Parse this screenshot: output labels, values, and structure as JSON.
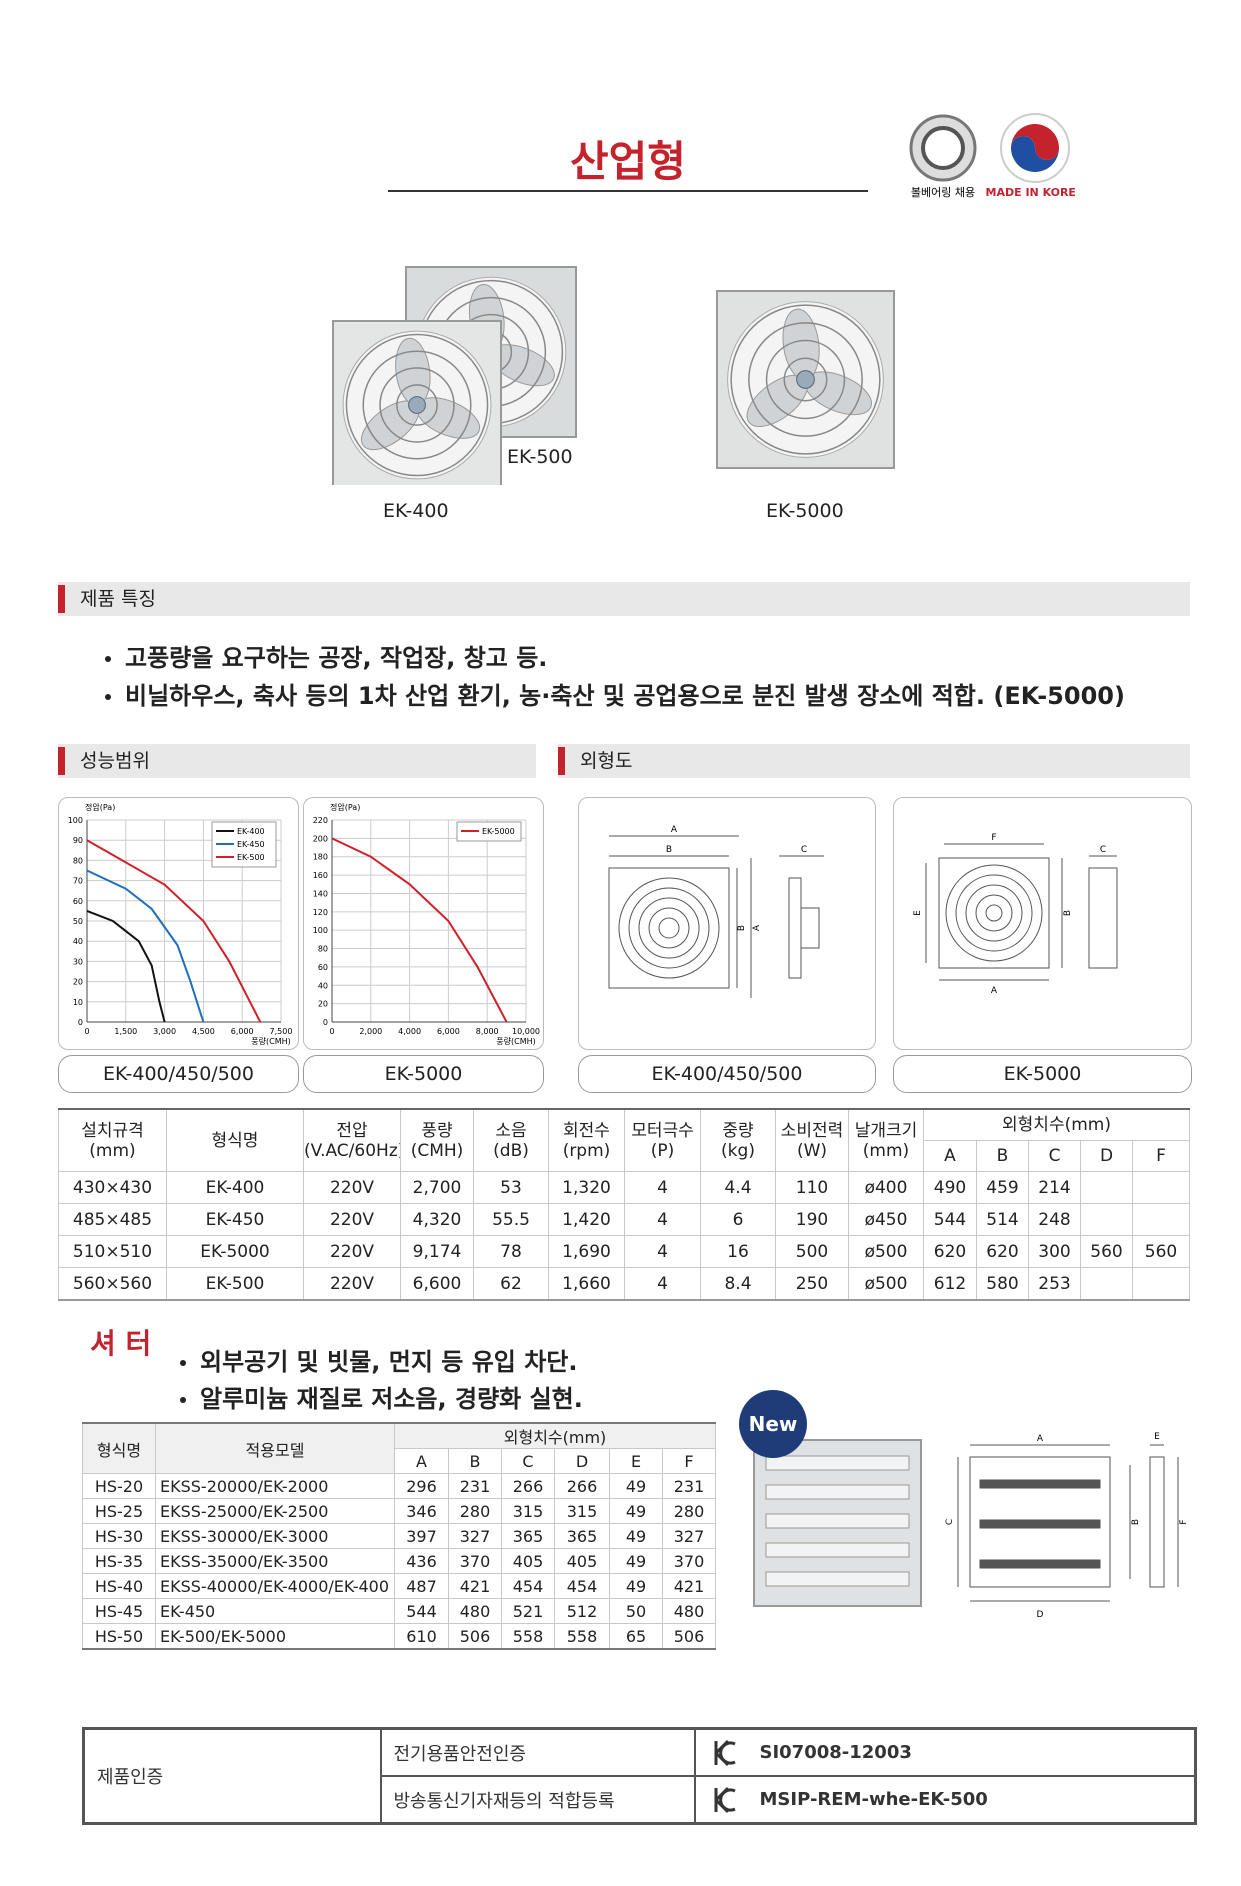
{
  "header": {
    "title": "산업형",
    "badges": [
      "볼베어링 채용",
      "MADE IN KOREA"
    ]
  },
  "products": [
    "EK-500",
    "EK-400",
    "EK-5000"
  ],
  "features": {
    "title": "제품 특징",
    "items": [
      "고풍량을 요구하는 공장, 작업장, 창고 등.",
      "비닐하우스, 축사 등의 1차 산업 환기, 농·축산 및 공업용으로 분진 발생 장소에 적합. (EK-5000)"
    ]
  },
  "performance": {
    "title": "성능범위",
    "charts": [
      {
        "type": "line",
        "y_label": "정압(Pa)",
        "x_label": "풍량(CMH)",
        "xlim": [
          0,
          7500
        ],
        "xticks": [
          0,
          {
            "value": 1500,
            "label": "1,500"
          },
          {
            "value": 3000,
            "label": "3,000"
          },
          {
            "value": 4500,
            "label": "4,500"
          },
          {
            "value": 6000,
            "label": "6,000"
          },
          {
            "value": 7500,
            "label": "7,500"
          }
        ],
        "ylim": [
          0,
          100
        ],
        "yticks": [
          0,
          10,
          20,
          30,
          40,
          50,
          60,
          70,
          80,
          90,
          100
        ],
        "grid": true,
        "legend": "upper right",
        "series": [
          {
            "name": "EK-400",
            "color": "#111111",
            "x": [
              0,
              1000,
              2000,
              2500,
              2800,
              3000
            ],
            "values": [
              55,
              50,
              40,
              28,
              10,
              0
            ]
          },
          {
            "name": "EK-450",
            "color": "#1f6fb8",
            "x": [
              0,
              1500,
              2500,
              3500,
              4000,
              4500
            ],
            "values": [
              75,
              66,
              56,
              38,
              20,
              0
            ]
          },
          {
            "name": "EK-500",
            "color": "#d0202a",
            "x": [
              0,
              1500,
              3000,
              4500,
              5500,
              6300,
              6700
            ],
            "values": [
              90,
              79,
              68,
              50,
              30,
              10,
              0
            ]
          }
        ]
      },
      {
        "type": "line",
        "y_label": "정압(Pa)",
        "x_label": "풍량(CMH)",
        "xlim": [
          0,
          10000
        ],
        "xticks": [
          0,
          {
            "value": 2000,
            "label": "2,000"
          },
          {
            "value": 4000,
            "label": "4,000"
          },
          {
            "value": 6000,
            "label": "6,000"
          },
          {
            "value": 8000,
            "label": "8,000"
          },
          {
            "value": 10000,
            "label": "10,000"
          }
        ],
        "ylim": [
          0,
          220
        ],
        "yticks": [
          0,
          20,
          40,
          60,
          80,
          100,
          120,
          140,
          160,
          180,
          200,
          220
        ],
        "grid": true,
        "legend": "upper right",
        "series": [
          {
            "name": "EK-5000",
            "color": "#d0202a",
            "x": [
              0,
              2000,
              4000,
              6000,
              7500,
              8500,
              9000
            ],
            "values": [
              200,
              180,
              150,
              110,
              60,
              20,
              0
            ]
          }
        ]
      }
    ],
    "captions": [
      "EK-400/450/500",
      "EK-5000"
    ]
  },
  "outline": {
    "title": "외형도",
    "drawings": [
      {
        "labels": [
          "A",
          "B",
          "B",
          "A",
          "C"
        ]
      },
      {
        "labels": [
          "F",
          "E",
          "B",
          "C",
          "A"
        ]
      }
    ],
    "captions": [
      "EK-400/450/500",
      "EK-5000"
    ]
  },
  "spec_table": {
    "headers": [
      [
        "설치규격",
        "(mm)"
      ],
      [
        "형식명"
      ],
      [
        "전압",
        "(V.AC/60Hz)"
      ],
      [
        "풍량",
        "(CMH)"
      ],
      [
        "소음",
        "(dB)"
      ],
      [
        "회전수",
        "(rpm)"
      ],
      [
        "모터극수",
        "(P)"
      ],
      [
        "중량",
        "(kg)"
      ],
      [
        "소비전력",
        "(W)"
      ],
      [
        "날개크기",
        "(mm)"
      ]
    ],
    "dims_header": "외형치수(mm)",
    "dims_cols": [
      "A",
      "B",
      "C",
      "D",
      "F"
    ],
    "rows": [
      [
        "430×430",
        "EK-400",
        "220V",
        "2,700",
        "53",
        "1,320",
        "4",
        "4.4",
        "110",
        "ø400",
        "490",
        "459",
        "214",
        null,
        null
      ],
      [
        "485×485",
        "EK-450",
        "220V",
        "4,320",
        "55.5",
        "1,420",
        "4",
        "6",
        "190",
        "ø450",
        "544",
        "514",
        "248",
        null,
        null
      ],
      [
        "510×510",
        "EK-5000",
        "220V",
        "9,174",
        "78",
        "1,690",
        "4",
        "16",
        "500",
        "ø500",
        "620",
        "620",
        "300",
        "560",
        "560"
      ],
      [
        "560×560",
        "EK-500",
        "220V",
        "6,600",
        "62",
        "1,660",
        "4",
        "8.4",
        "250",
        "ø500",
        "612",
        "580",
        "253",
        null,
        null
      ]
    ]
  },
  "shutter": {
    "title": "셔 터",
    "items": [
      "외부공기 및 빗물, 먼지 등 유입 차단.",
      "알루미늄 재질로 저소음, 경량화 실현."
    ],
    "badge": "New",
    "table": {
      "headers": [
        "형식명",
        "적용모델"
      ],
      "dims_header": "외형치수(mm)",
      "dims_cols": [
        "A",
        "B",
        "C",
        "D",
        "E",
        "F"
      ],
      "rows": [
        [
          "HS-20",
          "EKSS-20000/EK-2000",
          "296",
          "231",
          "266",
          "266",
          "49",
          "231"
        ],
        [
          "HS-25",
          "EKSS-25000/EK-2500",
          "346",
          "280",
          "315",
          "315",
          "49",
          "280"
        ],
        [
          "HS-30",
          "EKSS-30000/EK-3000",
          "397",
          "327",
          "365",
          "365",
          "49",
          "327"
        ],
        [
          "HS-35",
          "EKSS-35000/EK-3500",
          "436",
          "370",
          "405",
          "405",
          "49",
          "370"
        ],
        [
          "HS-40",
          "EKSS-40000/EK-4000/EK-400",
          "487",
          "421",
          "454",
          "454",
          "49",
          "421"
        ],
        [
          "HS-45",
          "EK-450",
          "544",
          "480",
          "521",
          "512",
          "50",
          "480"
        ],
        [
          "HS-50",
          "EK-500/EK-5000",
          "610",
          "506",
          "558",
          "558",
          "65",
          "506"
        ]
      ]
    },
    "drawing_labels": [
      "A",
      "E",
      "C",
      "B",
      "F",
      "D"
    ]
  },
  "certification": {
    "label": "제품인증",
    "items": [
      {
        "name": "전기용품안전인증",
        "code": "SI07008-12003"
      },
      {
        "name": "방송통신기자재등의 적합등록",
        "code": "MSIP-REM-whe-EK-500"
      }
    ]
  }
}
